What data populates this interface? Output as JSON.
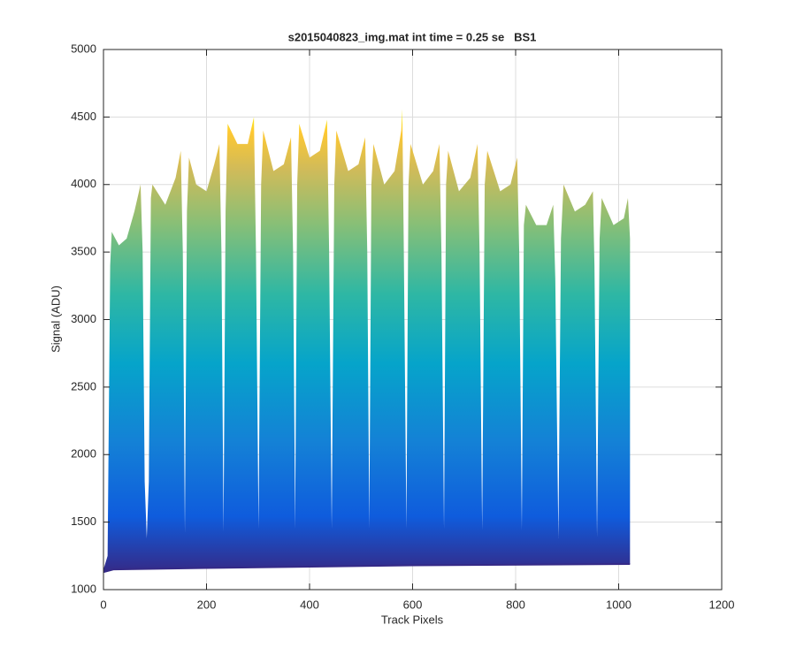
{
  "chart_data": {
    "type": "area",
    "title": "s2015040823_img.mat int time = 0.25 se   BS1",
    "xlabel": "Track Pixels",
    "ylabel": "Signal (ADU)",
    "xlim": [
      0,
      1200
    ],
    "xticks": [
      0,
      200,
      400,
      600,
      800,
      1000,
      1200
    ],
    "ylim": [
      1000,
      5000
    ],
    "yticks": [
      1000,
      1500,
      2000,
      2500,
      3000,
      3500,
      4000,
      4500,
      5000
    ],
    "grid": true,
    "series": [
      {
        "x": [
          0,
          8,
          13,
          16,
          30,
          45,
          60,
          72,
          76,
          80,
          84,
          88,
          92,
          95,
          120,
          140,
          150,
          154,
          158,
          162,
          166,
          180,
          200,
          215,
          225,
          229,
          233,
          237,
          241,
          260,
          280,
          292,
          296,
          301,
          306,
          310,
          330,
          350,
          364,
          368,
          372,
          376,
          380,
          400,
          420,
          434,
          438,
          443,
          448,
          452,
          475,
          495,
          508,
          512,
          516,
          520,
          524,
          545,
          565,
          578,
          580,
          583,
          588,
          592,
          596,
          620,
          640,
          652,
          656,
          661,
          665,
          669,
          690,
          712,
          726,
          730,
          735,
          740,
          745,
          770,
          790,
          803,
          807,
          812,
          816,
          820,
          840,
          860,
          873,
          877,
          883,
          888,
          893,
          915,
          935,
          950,
          953,
          958,
          963,
          967,
          990,
          1010,
          1018,
          1022,
          1022
        ],
        "values": [
          1150,
          1250,
          3400,
          3650,
          3550,
          3600,
          3800,
          4000,
          3500,
          1800,
          1380,
          1800,
          3900,
          4000,
          3850,
          4050,
          4250,
          3500,
          1420,
          3800,
          4200,
          4000,
          3950,
          4150,
          4300,
          3500,
          1430,
          3800,
          4450,
          4300,
          4300,
          4500,
          3500,
          1450,
          4000,
          4400,
          4100,
          4150,
          4350,
          3500,
          1450,
          4000,
          4450,
          4200,
          4250,
          4480,
          3500,
          1450,
          4000,
          4400,
          4100,
          4150,
          4350,
          3500,
          1450,
          4000,
          4300,
          4000,
          4100,
          4400,
          4560,
          3500,
          1450,
          4000,
          4300,
          4000,
          4100,
          4300,
          3500,
          1450,
          4000,
          4250,
          3950,
          4050,
          4300,
          3500,
          1440,
          4000,
          4250,
          3950,
          4000,
          4200,
          3500,
          1440,
          3700,
          3850,
          3700,
          3700,
          3850,
          3300,
          1380,
          3600,
          4000,
          3800,
          3850,
          3950,
          3400,
          1390,
          3600,
          3900,
          3700,
          3750,
          3900,
          3600,
          1190
        ]
      },
      {
        "x": [
          0,
          20,
          200,
          600,
          1022
        ],
        "values": [
          1130,
          1150,
          1160,
          1180,
          1190
        ]
      }
    ]
  }
}
